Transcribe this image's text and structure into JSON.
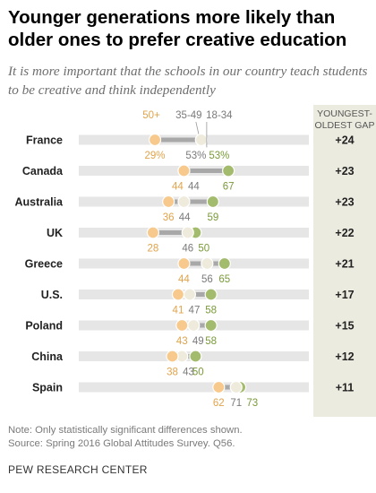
{
  "title": "Younger generations more likely than older ones to prefer creative education",
  "subtitle": "It is more important that the schools in our country teach students to be creative and think independently",
  "gap_header": "YOUNGEST-OLDEST GAP",
  "note": "Note: Only statistically significant differences shown.",
  "source": "Source: Spring 2016 Global Attitudes Survey. Q56.",
  "org": "PEW RESEARCH CENTER",
  "chart_data": {
    "type": "dot",
    "xlim": [
      0,
      100
    ],
    "colors": {
      "age_50_plus": "#f7c98c",
      "age_35_49": "#efebdc",
      "age_18_34": "#a3bb6c",
      "connector": "#a8a8a8",
      "row_band": "#e6e6e6",
      "label_50_plus": "#e0a34c",
      "label_35_49": "#7a7a7a",
      "label_18_34": "#7a9a3a"
    },
    "series": [
      {
        "key": "age_50_plus",
        "name": "50+"
      },
      {
        "key": "age_35_49",
        "name": "35-49"
      },
      {
        "key": "age_18_34",
        "name": "18-34"
      }
    ],
    "rows": [
      {
        "country": "France",
        "values": [
          29,
          53,
          53
        ],
        "labels": [
          "29%",
          "53%",
          "53%"
        ],
        "gap": "+24"
      },
      {
        "country": "Canada",
        "values": [
          44,
          44,
          67
        ],
        "labels": [
          "44",
          "44",
          "67"
        ],
        "gap": "+23"
      },
      {
        "country": "Australia",
        "values": [
          36,
          44,
          59
        ],
        "labels": [
          "36",
          "44",
          "59"
        ],
        "gap": "+23"
      },
      {
        "country": "UK",
        "values": [
          28,
          46,
          50
        ],
        "labels": [
          "28",
          "46",
          "50"
        ],
        "gap": "+22"
      },
      {
        "country": "Greece",
        "values": [
          44,
          56,
          65
        ],
        "labels": [
          "44",
          "56",
          "65"
        ],
        "gap": "+21"
      },
      {
        "country": "U.S.",
        "values": [
          41,
          47,
          58
        ],
        "labels": [
          "41",
          "47",
          "58"
        ],
        "gap": "+17"
      },
      {
        "country": "Poland",
        "values": [
          43,
          49,
          58
        ],
        "labels": [
          "43",
          "49",
          "58"
        ],
        "gap": "+15"
      },
      {
        "country": "China",
        "values": [
          38,
          43,
          50
        ],
        "labels": [
          "38",
          "43",
          "50"
        ],
        "gap": "+12"
      },
      {
        "country": "Spain",
        "values": [
          62,
          71,
          73
        ],
        "labels": [
          "62",
          "71",
          "73"
        ],
        "gap": "+11"
      }
    ]
  }
}
